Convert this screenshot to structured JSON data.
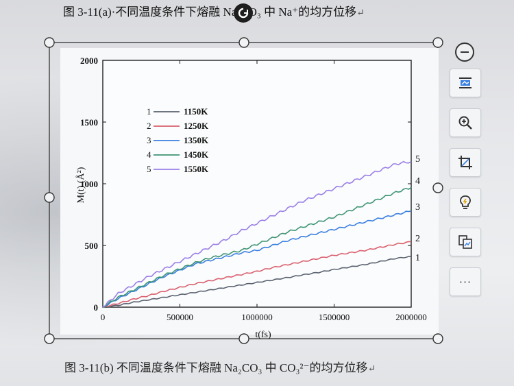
{
  "document": {
    "top_caption": "图 3-11(a)·不同温度条件下熔融 Na₂CO₃ 中 Na⁺的均方位移",
    "bottom_caption": "图 3-11(b) 不同温度条件下熔融 Na₂CO₃ 中 CO₃²⁻的均方位移",
    "paragraph_mark": "↵"
  },
  "toolbar": {
    "items": [
      {
        "name": "minus-button",
        "icon": "minus-circle-icon"
      },
      {
        "name": "layout-options-button",
        "icon": "layout-icon"
      },
      {
        "name": "zoom-button",
        "icon": "zoom-in-icon"
      },
      {
        "name": "crop-button",
        "icon": "crop-icon"
      },
      {
        "name": "idea-button",
        "icon": "lightbulb-icon"
      },
      {
        "name": "image-convert-button",
        "icon": "image-convert-icon"
      },
      {
        "name": "more-button",
        "icon": "more-icon",
        "label": "···"
      }
    ]
  },
  "colors": {
    "s1150": "#5a6270",
    "s1250": "#d9606e",
    "s1350": "#3a7fe0",
    "s1450": "#3e9474",
    "s1550": "#9a7fe6",
    "selection": "#333333"
  },
  "chart_data": {
    "type": "line",
    "title": "",
    "xlabel": "t(fs)",
    "ylabel": "M(t) (Å²)",
    "xlim": [
      0,
      2000000
    ],
    "ylim": [
      0,
      2000
    ],
    "xticks": [
      "0",
      "500000",
      "1000000",
      "1500000",
      "2000000"
    ],
    "yticks": [
      "0",
      "500",
      "1000",
      "1500",
      "2000"
    ],
    "legend_position": "top-left",
    "x": [
      0,
      100000,
      200000,
      300000,
      400000,
      500000,
      600000,
      700000,
      800000,
      900000,
      1000000,
      1100000,
      1200000,
      1300000,
      1400000,
      1500000,
      1600000,
      1700000,
      1800000,
      1900000,
      2000000
    ],
    "series": [
      {
        "name": "1150K",
        "index": "1",
        "color_key": "s1150",
        "values": [
          0,
          15,
          40,
          60,
          80,
          100,
          120,
          140,
          160,
          180,
          200,
          220,
          240,
          262,
          282,
          305,
          325,
          345,
          370,
          395,
          410
        ]
      },
      {
        "name": "1250K",
        "index": "2",
        "color_key": "s1250",
        "values": [
          0,
          30,
          65,
          95,
          130,
          160,
          190,
          215,
          240,
          265,
          290,
          320,
          345,
          370,
          395,
          420,
          440,
          460,
          485,
          510,
          530
        ]
      },
      {
        "name": "1350K",
        "index": "3",
        "color_key": "s1350",
        "values": [
          0,
          70,
          130,
          190,
          250,
          300,
          350,
          380,
          410,
          440,
          460,
          500,
          540,
          570,
          600,
          630,
          660,
          690,
          720,
          750,
          780
        ]
      },
      {
        "name": "1450K",
        "index": "4",
        "color_key": "s1450",
        "values": [
          0,
          80,
          140,
          200,
          260,
          310,
          360,
          400,
          430,
          460,
          510,
          560,
          610,
          650,
          690,
          730,
          780,
          830,
          880,
          930,
          970
        ]
      },
      {
        "name": "1550K",
        "index": "5",
        "color_key": "s1550",
        "values": [
          0,
          110,
          180,
          250,
          310,
          370,
          430,
          490,
          550,
          620,
          680,
          740,
          800,
          860,
          910,
          960,
          1010,
          1060,
          1110,
          1160,
          1180
        ]
      }
    ]
  }
}
